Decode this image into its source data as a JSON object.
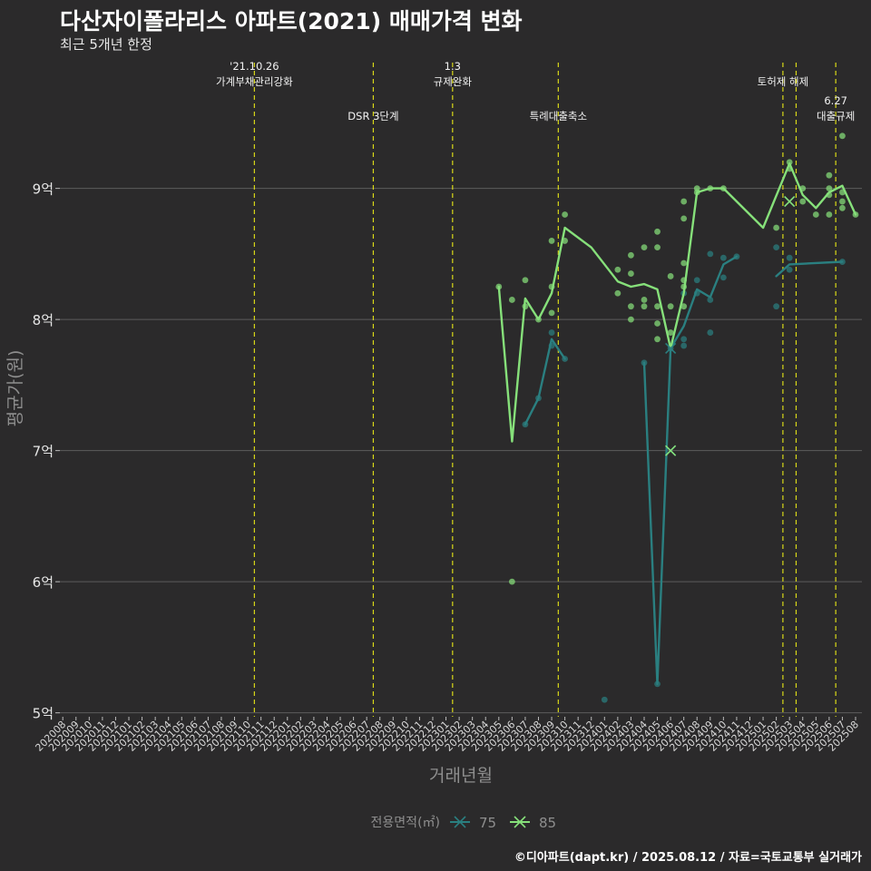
{
  "title": "다산자이폴라리스 아파트(2021) 매매가격 변화",
  "subtitle": "최근 5개년 한정",
  "caption": "©디아파트(dapt.kr) / 2025.08.12 / 자료=국토교통부 실거래가",
  "colors": {
    "background": "#2b2a2b",
    "grid": "#5c5c5c",
    "event_line": "#d9d918",
    "series_75": "#2a7f80",
    "series_85": "#86e07a"
  },
  "chart_data": {
    "type": "line",
    "xlabel": "거래년월",
    "ylabel": "평균가(원)",
    "x_categories": [
      "202008",
      "202009",
      "202010",
      "202011",
      "202012",
      "202101",
      "202102",
      "202103",
      "202104",
      "202105",
      "202106",
      "202107",
      "202108",
      "202109",
      "202110",
      "202111",
      "202112",
      "202201",
      "202202",
      "202203",
      "202204",
      "202205",
      "202206",
      "202207",
      "202208",
      "202209",
      "202210",
      "202211",
      "202212",
      "202301",
      "202302",
      "202303",
      "202304",
      "202305",
      "202306",
      "202307",
      "202308",
      "202309",
      "202310",
      "202311",
      "202312",
      "202401",
      "202402",
      "202403",
      "202404",
      "202405",
      "202406",
      "202407",
      "202408",
      "202409",
      "202410",
      "202411",
      "202412",
      "202501",
      "202502",
      "202503",
      "202504",
      "202505",
      "202506",
      "202507",
      "202508"
    ],
    "y_ticks": [
      {
        "value": 5,
        "label": "5억"
      },
      {
        "value": 6,
        "label": "6억"
      },
      {
        "value": 7,
        "label": "7억"
      },
      {
        "value": 8,
        "label": "8억"
      },
      {
        "value": 9,
        "label": "9억"
      }
    ],
    "ylim": [
      4.97,
      9.98
    ],
    "grid": true,
    "legend": {
      "title": "전용면적(㎡)",
      "position": "bottom"
    },
    "events": [
      {
        "x": 14.5,
        "lines": [
          "'21.10.26",
          "가계부채관리강화"
        ],
        "tier": 1
      },
      {
        "x": 23.5,
        "lines": [
          "DSR 3단계"
        ],
        "tier": 2
      },
      {
        "x": 29.5,
        "lines": [
          "1.3",
          "규제완화"
        ],
        "tier": 1
      },
      {
        "x": 37.5,
        "lines": [
          "특례대출축소"
        ],
        "tier": 2
      },
      {
        "x": 54.5,
        "lines": [
          "토허제 해제"
        ],
        "tier": 1
      },
      {
        "x": 55.5,
        "lines": [],
        "tier": 0
      },
      {
        "x": 58.5,
        "lines": [
          "6.27",
          "대출규제"
        ],
        "tier": 2
      }
    ],
    "series": [
      {
        "name": "75",
        "line": [
          [
            35,
            7.2
          ],
          [
            36,
            7.4
          ],
          [
            37,
            7.85
          ],
          [
            38,
            7.7
          ],
          [
            null,
            null
          ],
          [
            44,
            7.67
          ],
          [
            45,
            5.22
          ],
          [
            46,
            7.78
          ],
          [
            47,
            7.95
          ],
          [
            48,
            8.23
          ],
          [
            49,
            8.17
          ],
          [
            50,
            8.42
          ],
          [
            51,
            8.48
          ],
          [
            null,
            null
          ],
          [
            54,
            8.33
          ],
          [
            55,
            8.42
          ],
          [
            59,
            8.44
          ]
        ],
        "points": [
          [
            35,
            7.2
          ],
          [
            36,
            7.4
          ],
          [
            37,
            7.9
          ],
          [
            37,
            7.8
          ],
          [
            38,
            7.7
          ],
          [
            41,
            5.1
          ],
          [
            44,
            7.67
          ],
          [
            45,
            5.22
          ],
          [
            46,
            7.78
          ],
          [
            47,
            7.85
          ],
          [
            47,
            7.8
          ],
          [
            47,
            8.2
          ],
          [
            48,
            8.3
          ],
          [
            48,
            8.2
          ],
          [
            49,
            8.5
          ],
          [
            49,
            7.9
          ],
          [
            49,
            8.15
          ],
          [
            50,
            8.32
          ],
          [
            50,
            8.47
          ],
          [
            51,
            8.48
          ],
          [
            54,
            8.55
          ],
          [
            54,
            8.1
          ],
          [
            55,
            8.47
          ],
          [
            55,
            8.38
          ],
          [
            59,
            8.44
          ]
        ],
        "markers": [
          [
            46,
            7.78
          ],
          [
            46,
            7.0
          ],
          [
            55,
            8.9
          ]
        ]
      },
      {
        "name": "85",
        "line": [
          [
            33,
            8.25
          ],
          [
            34,
            7.07
          ],
          [
            35,
            8.16
          ],
          [
            36,
            8.0
          ],
          [
            37,
            8.2
          ],
          [
            38,
            8.7
          ],
          [
            40,
            8.55
          ],
          [
            42,
            8.29
          ],
          [
            43,
            8.25
          ],
          [
            44,
            8.27
          ],
          [
            45,
            8.23
          ],
          [
            46,
            7.78
          ],
          [
            47,
            8.2
          ],
          [
            48,
            8.97
          ],
          [
            49,
            9.0
          ],
          [
            50,
            9.0
          ],
          [
            53,
            8.7
          ],
          [
            55,
            9.19
          ],
          [
            56,
            8.95
          ],
          [
            57,
            8.85
          ],
          [
            58,
            8.97
          ],
          [
            59,
            9.02
          ],
          [
            60,
            8.8
          ]
        ],
        "points": [
          [
            33,
            8.25
          ],
          [
            34,
            8.15
          ],
          [
            34,
            6.0
          ],
          [
            35,
            8.1
          ],
          [
            35,
            8.3
          ],
          [
            36,
            8.0
          ],
          [
            37,
            8.6
          ],
          [
            37,
            8.25
          ],
          [
            37,
            8.05
          ],
          [
            38,
            8.8
          ],
          [
            38,
            8.6
          ],
          [
            42,
            8.38
          ],
          [
            42,
            8.2
          ],
          [
            43,
            8.49
          ],
          [
            43,
            8.35
          ],
          [
            43,
            8.1
          ],
          [
            43,
            8.0
          ],
          [
            44,
            8.55
          ],
          [
            44,
            8.15
          ],
          [
            44,
            8.1
          ],
          [
            45,
            8.67
          ],
          [
            45,
            8.55
          ],
          [
            45,
            8.1
          ],
          [
            45,
            7.97
          ],
          [
            45,
            7.85
          ],
          [
            46,
            8.33
          ],
          [
            46,
            8.1
          ],
          [
            46,
            7.9
          ],
          [
            47,
            8.9
          ],
          [
            47,
            8.77
          ],
          [
            47,
            8.43
          ],
          [
            47,
            8.3
          ],
          [
            47,
            8.25
          ],
          [
            47,
            8.1
          ],
          [
            48,
            9.0
          ],
          [
            48,
            8.97
          ],
          [
            49,
            9.0
          ],
          [
            50,
            9.0
          ],
          [
            54,
            8.7
          ],
          [
            55,
            9.2
          ],
          [
            55,
            9.15
          ],
          [
            56,
            9.0
          ],
          [
            56,
            8.9
          ],
          [
            57,
            8.8
          ],
          [
            58,
            9.1
          ],
          [
            58,
            9.0
          ],
          [
            58,
            8.95
          ],
          [
            58,
            8.8
          ],
          [
            59,
            9.4
          ],
          [
            59,
            8.97
          ],
          [
            59,
            8.9
          ],
          [
            59,
            8.85
          ],
          [
            60,
            8.8
          ]
        ],
        "markers": [
          [
            46,
            7.0
          ],
          [
            55,
            8.9
          ]
        ]
      }
    ]
  }
}
